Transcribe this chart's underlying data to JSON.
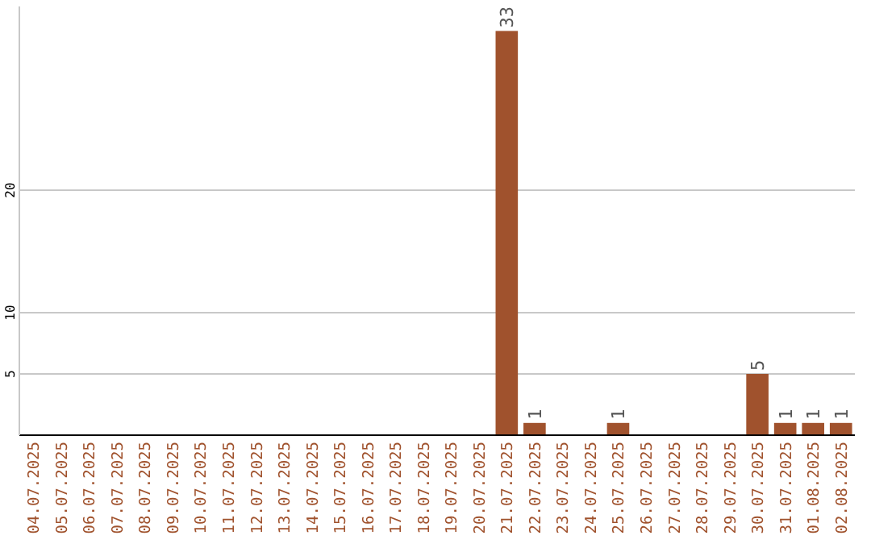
{
  "chart_data": {
    "type": "bar",
    "categories": [
      "04.07.2025",
      "05.07.2025",
      "06.07.2025",
      "07.07.2025",
      "08.07.2025",
      "09.07.2025",
      "10.07.2025",
      "11.07.2025",
      "12.07.2025",
      "13.07.2025",
      "14.07.2025",
      "15.07.2025",
      "16.07.2025",
      "17.07.2025",
      "18.07.2025",
      "19.07.2025",
      "20.07.2025",
      "21.07.2025",
      "22.07.2025",
      "23.07.2025",
      "24.07.2025",
      "25.07.2025",
      "26.07.2025",
      "27.07.2025",
      "28.07.2025",
      "29.07.2025",
      "30.07.2025",
      "31.07.2025",
      "01.08.2025",
      "02.08.2025"
    ],
    "values": [
      0,
      0,
      0,
      0,
      0,
      0,
      0,
      0,
      0,
      0,
      0,
      0,
      0,
      0,
      0,
      0,
      0,
      33,
      1,
      0,
      0,
      1,
      0,
      0,
      0,
      0,
      5,
      1,
      1,
      1
    ],
    "value_labels": [
      null,
      null,
      null,
      null,
      null,
      null,
      null,
      null,
      null,
      null,
      null,
      null,
      null,
      null,
      null,
      null,
      null,
      "33",
      "1",
      null,
      null,
      "1",
      null,
      null,
      null,
      null,
      "5",
      "1",
      "1",
      "1"
    ],
    "color": "#a0522d",
    "ylim": [
      0,
      35
    ],
    "yticks": [
      5,
      10,
      20
    ],
    "grid": "y"
  }
}
